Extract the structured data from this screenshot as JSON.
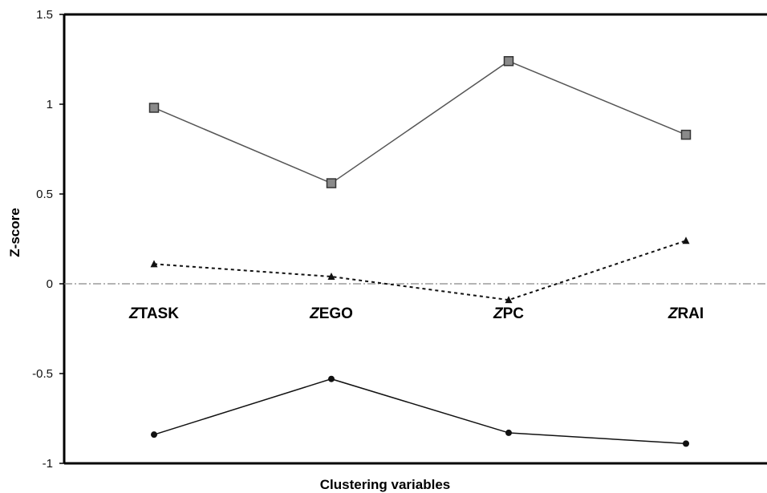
{
  "chart_data": {
    "type": "line",
    "xlabel": "Clustering variables",
    "ylabel": "Z-score",
    "ylim": [
      -1,
      1.5
    ],
    "yticks": [
      -1,
      -0.5,
      0,
      0.5,
      1,
      1.5
    ],
    "ytick_labels": [
      "-1",
      "-0.5",
      "0",
      "0.5",
      "1",
      "1.5"
    ],
    "categories": [
      {
        "prefix": "Z",
        "rest": "TASK"
      },
      {
        "prefix": "Z",
        "rest": "EGO"
      },
      {
        "prefix": "Z",
        "rest": "PC"
      },
      {
        "prefix": "Z",
        "rest": "RAI"
      }
    ],
    "grid": false,
    "legend": "none",
    "series": [
      {
        "marker": "square",
        "line": "solid",
        "color": "#555555",
        "values": [
          0.98,
          0.56,
          1.24,
          0.83
        ]
      },
      {
        "marker": "triangle",
        "line": "dotted",
        "color": "#111111",
        "values": [
          0.11,
          0.04,
          -0.09,
          0.24
        ]
      },
      {
        "marker": "circle",
        "line": "solid",
        "color": "#111111",
        "values": [
          -0.84,
          -0.53,
          -0.83,
          -0.89
        ]
      }
    ]
  }
}
